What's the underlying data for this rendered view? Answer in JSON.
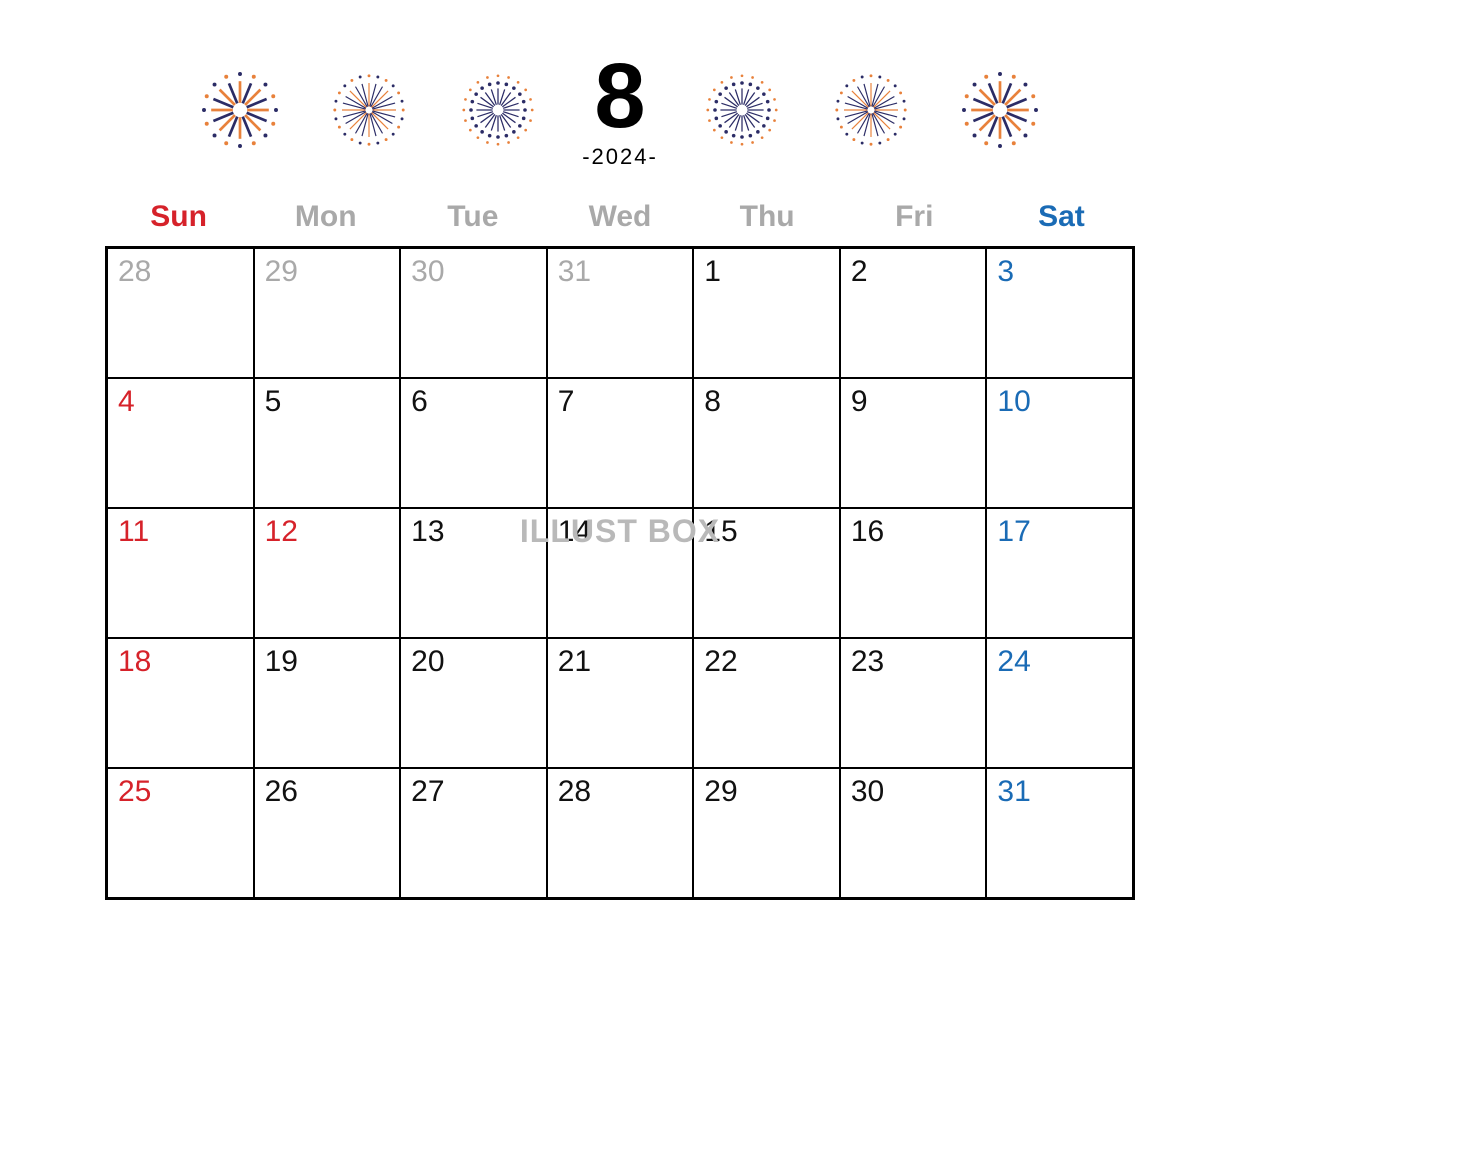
{
  "colors": {
    "sunday": "#d6222a",
    "saturday": "#1a6bb5",
    "weekday_header": "#a9a9a9",
    "out_month": "#a9a9a9",
    "normal": "#111111",
    "month_num": "#000000",
    "year": "#000000",
    "firework_orange": "#e8813b",
    "firework_navy": "#2b2c66",
    "border": "#000000",
    "background": "#ffffff"
  },
  "month": "8",
  "year": "-2024-",
  "watermark": "ILLUST BOX",
  "day_names": [
    {
      "label": "Sun",
      "color_key": "sunday"
    },
    {
      "label": "Mon",
      "color_key": "weekday_header"
    },
    {
      "label": "Tue",
      "color_key": "weekday_header"
    },
    {
      "label": "Wed",
      "color_key": "weekday_header"
    },
    {
      "label": "Thu",
      "color_key": "weekday_header"
    },
    {
      "label": "Fri",
      "color_key": "weekday_header"
    },
    {
      "label": "Sat",
      "color_key": "saturday"
    }
  ],
  "weeks": [
    [
      {
        "n": "28",
        "color_key": "out_month"
      },
      {
        "n": "29",
        "color_key": "out_month"
      },
      {
        "n": "30",
        "color_key": "out_month"
      },
      {
        "n": "31",
        "color_key": "out_month"
      },
      {
        "n": "1",
        "color_key": "normal"
      },
      {
        "n": "2",
        "color_key": "normal"
      },
      {
        "n": "3",
        "color_key": "saturday"
      }
    ],
    [
      {
        "n": "4",
        "color_key": "sunday"
      },
      {
        "n": "5",
        "color_key": "normal"
      },
      {
        "n": "6",
        "color_key": "normal"
      },
      {
        "n": "7",
        "color_key": "normal"
      },
      {
        "n": "8",
        "color_key": "normal"
      },
      {
        "n": "9",
        "color_key": "normal"
      },
      {
        "n": "10",
        "color_key": "saturday"
      }
    ],
    [
      {
        "n": "11",
        "color_key": "sunday"
      },
      {
        "n": "12",
        "color_key": "sunday"
      },
      {
        "n": "13",
        "color_key": "normal"
      },
      {
        "n": "14",
        "color_key": "normal"
      },
      {
        "n": "15",
        "color_key": "normal"
      },
      {
        "n": "16",
        "color_key": "normal"
      },
      {
        "n": "17",
        "color_key": "saturday"
      }
    ],
    [
      {
        "n": "18",
        "color_key": "sunday"
      },
      {
        "n": "19",
        "color_key": "normal"
      },
      {
        "n": "20",
        "color_key": "normal"
      },
      {
        "n": "21",
        "color_key": "normal"
      },
      {
        "n": "22",
        "color_key": "normal"
      },
      {
        "n": "23",
        "color_key": "normal"
      },
      {
        "n": "24",
        "color_key": "saturday"
      }
    ],
    [
      {
        "n": "25",
        "color_key": "sunday"
      },
      {
        "n": "26",
        "color_key": "normal"
      },
      {
        "n": "27",
        "color_key": "normal"
      },
      {
        "n": "28",
        "color_key": "normal"
      },
      {
        "n": "29",
        "color_key": "normal"
      },
      {
        "n": "30",
        "color_key": "normal"
      },
      {
        "n": "31",
        "color_key": "saturday"
      }
    ]
  ],
  "fireworks": [
    {
      "style": "burst_petals"
    },
    {
      "style": "sparkle"
    },
    {
      "style": "dots_lines"
    },
    {
      "style": "dots_lines"
    },
    {
      "style": "sparkle"
    },
    {
      "style": "burst_petals"
    }
  ]
}
